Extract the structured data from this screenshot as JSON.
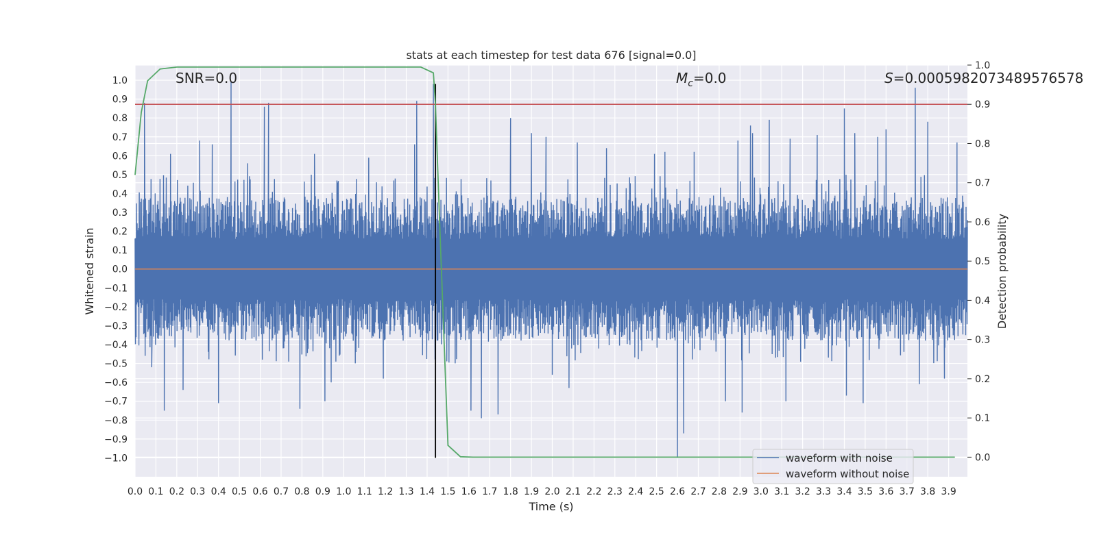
{
  "chart_data": {
    "type": "line",
    "title": "stats at each timestep for test data 676 [signal=0.0]",
    "xlabel": "Time (s)",
    "ylabel": "Whitened strain",
    "y2label": "Detection probability",
    "xlim": [
      0.0,
      3.99
    ],
    "ylim": [
      -1.1,
      1.08
    ],
    "y2lim": [
      -0.05,
      1.0
    ],
    "x_ticks": [
      "0.0",
      "0.1",
      "0.2",
      "0.3",
      "0.4",
      "0.5",
      "0.6",
      "0.7",
      "0.8",
      "0.9",
      "1.0",
      "1.1",
      "1.2",
      "1.3",
      "1.4",
      "1.5",
      "1.6",
      "1.7",
      "1.8",
      "1.9",
      "2.0",
      "2.1",
      "2.2",
      "2.3",
      "2.4",
      "2.5",
      "2.6",
      "2.7",
      "2.8",
      "2.9",
      "3.0",
      "3.1",
      "3.2",
      "3.3",
      "3.4",
      "3.5",
      "3.6",
      "3.7",
      "3.8",
      "3.9"
    ],
    "y_ticks": [
      "1.0",
      "0.9",
      "0.8",
      "0.7",
      "0.6",
      "0.5",
      "0.4",
      "0.3",
      "0.2",
      "0.1",
      "0.0",
      "−0.1",
      "−0.2",
      "−0.3",
      "−0.4",
      "−0.5",
      "−0.6",
      "−0.7",
      "−0.8",
      "−0.9",
      "−1.0"
    ],
    "y2_ticks": [
      "1.0",
      "0.9",
      "0.8",
      "0.7",
      "0.6",
      "0.5",
      "0.4",
      "0.3",
      "0.2",
      "0.1",
      "0.0"
    ],
    "grid": true,
    "legend_position": "lower-right",
    "annotations": {
      "snr": "SNR=0.0",
      "mc_symbol": "M",
      "mc_sub": "c",
      "mc_value": "=0.0",
      "s_symbol": "S",
      "s_value": "=0.0005982073489576578"
    },
    "series": [
      {
        "name": "waveform with noise",
        "color": "#4c72b0",
        "description_values": {
          "typical_range": [
            -0.4,
            0.4
          ]
        },
        "peaks": [
          [
            0.045,
            0.88
          ],
          [
            0.08,
            -0.52
          ],
          [
            0.14,
            -0.75
          ],
          [
            0.17,
            0.61
          ],
          [
            0.23,
            -0.64
          ],
          [
            0.31,
            0.68
          ],
          [
            0.37,
            0.66
          ],
          [
            0.4,
            -0.71
          ],
          [
            0.46,
            0.99
          ],
          [
            0.54,
            0.56
          ],
          [
            0.62,
            0.86
          ],
          [
            0.64,
            0.88
          ],
          [
            0.71,
            -0.42
          ],
          [
            0.79,
            -0.74
          ],
          [
            0.86,
            0.61
          ],
          [
            0.91,
            -0.7
          ],
          [
            0.94,
            -0.6
          ],
          [
            1.12,
            0.59
          ],
          [
            1.19,
            -0.58
          ],
          [
            1.34,
            0.66
          ],
          [
            1.35,
            0.89
          ],
          [
            1.43,
            0.98
          ],
          [
            1.44,
            -0.44
          ],
          [
            1.61,
            -0.75
          ],
          [
            1.66,
            -0.79
          ],
          [
            1.74,
            -0.77
          ],
          [
            1.8,
            0.8
          ],
          [
            1.9,
            0.72
          ],
          [
            1.97,
            0.7
          ],
          [
            2.0,
            -0.56
          ],
          [
            2.08,
            -0.63
          ],
          [
            2.12,
            0.67
          ],
          [
            2.26,
            0.64
          ],
          [
            2.49,
            0.61
          ],
          [
            2.54,
            0.62
          ],
          [
            2.6,
            -1.0
          ],
          [
            2.63,
            -0.87
          ],
          [
            2.68,
            0.62
          ],
          [
            2.83,
            -0.7
          ],
          [
            2.89,
            0.68
          ],
          [
            2.91,
            -0.76
          ],
          [
            2.95,
            0.76
          ],
          [
            2.96,
            0.72
          ],
          [
            3.04,
            0.79
          ],
          [
            3.12,
            -0.7
          ],
          [
            3.14,
            0.69
          ],
          [
            3.27,
            0.71
          ],
          [
            3.4,
            0.85
          ],
          [
            3.41,
            -0.67
          ],
          [
            3.45,
            0.72
          ],
          [
            3.49,
            -0.71
          ],
          [
            3.56,
            0.7
          ],
          [
            3.6,
            0.74
          ],
          [
            3.74,
            0.96
          ],
          [
            3.76,
            -0.61
          ],
          [
            3.8,
            0.78
          ],
          [
            3.88,
            -0.58
          ],
          [
            3.94,
            0.67
          ]
        ]
      },
      {
        "name": "waveform without noise",
        "color": "#dd8452",
        "x": [
          0.0,
          3.99
        ],
        "y": [
          0.0,
          0.0
        ]
      },
      {
        "name": "",
        "color": "#55a868",
        "axis": "right",
        "x": [
          0.0,
          0.03,
          0.06,
          0.12,
          0.2,
          0.3,
          0.5,
          0.8,
          1.0,
          1.2,
          1.37,
          1.43,
          1.44,
          1.46,
          1.5,
          1.56,
          1.62,
          1.8,
          2.2,
          3.0,
          3.93
        ],
        "y": [
          0.72,
          0.88,
          0.96,
          0.99,
          0.995,
          0.995,
          0.995,
          0.995,
          0.995,
          0.995,
          0.995,
          0.98,
          0.9,
          0.6,
          0.03,
          0.001,
          0.0,
          0.0,
          0.0,
          0.0,
          0.0
        ]
      }
    ],
    "threshold_line": {
      "axis": "right",
      "value": 0.9,
      "color": "#c44e52"
    },
    "marker_line": {
      "x": 1.44,
      "y_range": [
        -1.0,
        0.98
      ],
      "color": "#000000"
    }
  }
}
